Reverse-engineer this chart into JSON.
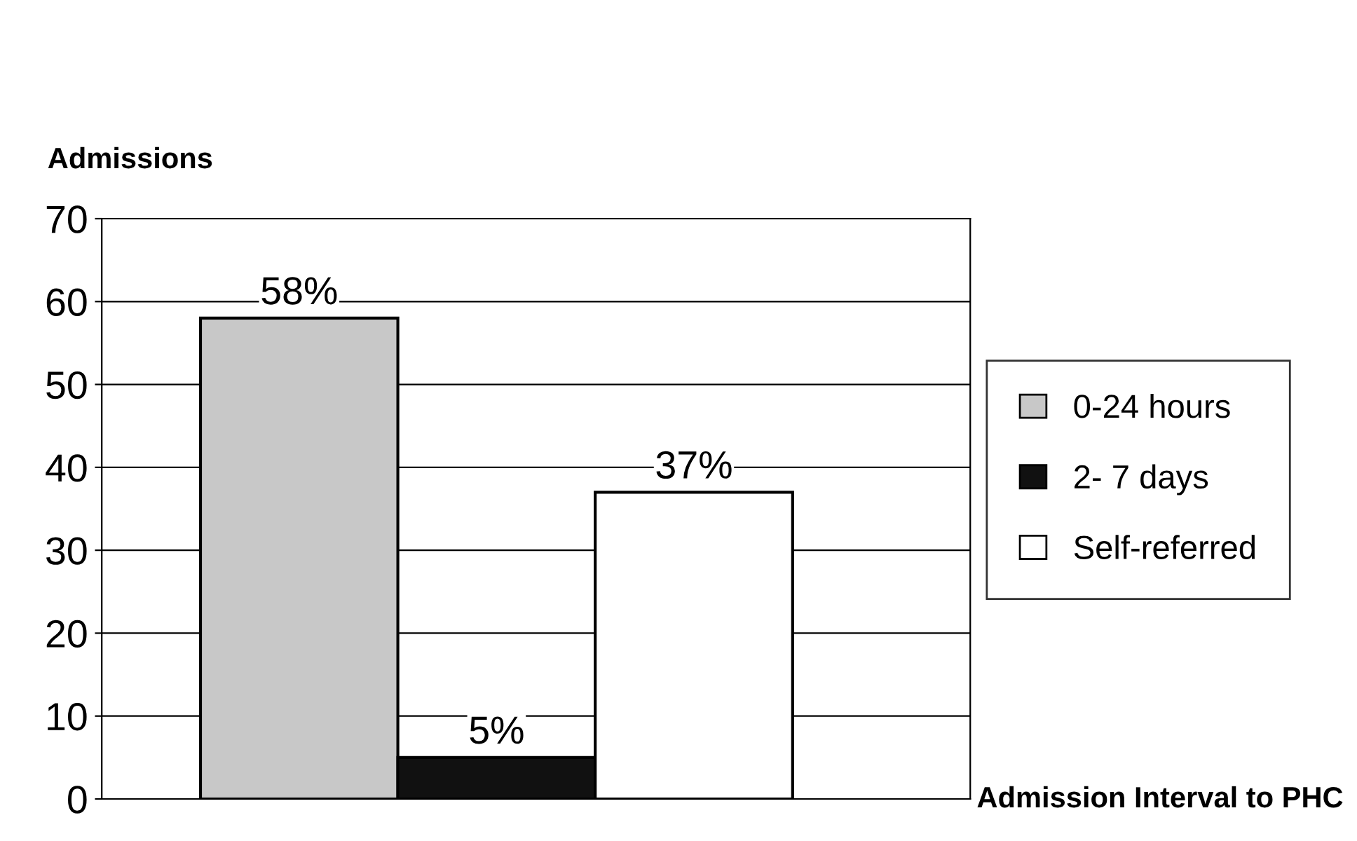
{
  "chart_data": {
    "type": "bar",
    "ylabel": "Admissions",
    "xlabel": "Admission Interval to PHC",
    "categories": [
      null,
      null,
      null
    ],
    "series": [
      {
        "name": "0-24 hours",
        "color": "#c8c8c8",
        "values": [
          58,
          null,
          null
        ],
        "value_labels": [
          "58%",
          null,
          null
        ]
      },
      {
        "name": "2- 7 days",
        "color": "#111111",
        "values": [
          null,
          5,
          null
        ],
        "value_labels": [
          null,
          "5%",
          null
        ]
      },
      {
        "name": "Self-referred",
        "color": "#ffffff",
        "values": [
          null,
          null,
          37
        ],
        "value_labels": [
          null,
          null,
          "37%"
        ]
      }
    ],
    "ylim": [
      0,
      70
    ],
    "yticks": [
      0,
      10,
      20,
      30,
      40,
      50,
      60,
      70
    ],
    "grid": "y",
    "legend": "right"
  }
}
